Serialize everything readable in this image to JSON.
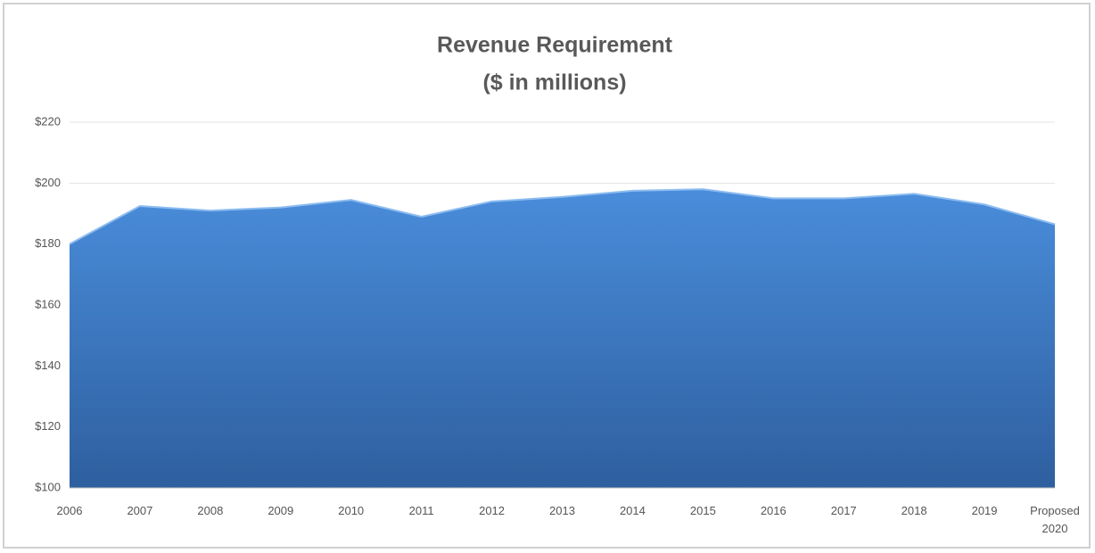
{
  "chart_data": {
    "type": "area",
    "title": "Revenue Requirement",
    "subtitle": "($ in millions)",
    "categories": [
      "2006",
      "2007",
      "2008",
      "2009",
      "2010",
      "2011",
      "2012",
      "2013",
      "2014",
      "2015",
      "2016",
      "2017",
      "2018",
      "2019",
      "Proposed 2020"
    ],
    "series": [
      {
        "color": "#4a8ad6",
        "values": [
          180,
          192.5,
          191,
          192,
          194.5,
          189,
          194,
          195.5,
          197.5,
          198,
          195,
          195,
          196.5,
          193,
          186.5
        ]
      }
    ],
    "ylim": [
      100,
      220
    ],
    "yticks": [
      {
        "value": 100,
        "label": "$100"
      },
      {
        "value": 120,
        "label": "$120"
      },
      {
        "value": 140,
        "label": "$140"
      },
      {
        "value": 160,
        "label": "$160"
      },
      {
        "value": 180,
        "label": "$180"
      },
      {
        "value": 200,
        "label": "$200"
      },
      {
        "value": 220,
        "label": "$220"
      }
    ],
    "grid": true
  }
}
